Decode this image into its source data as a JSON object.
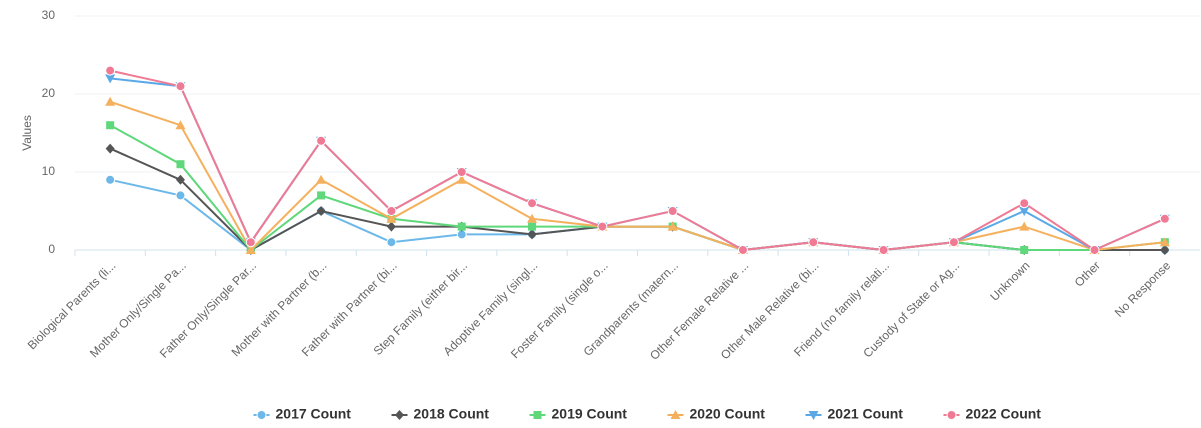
{
  "chart_data": {
    "type": "line",
    "ylabel": "Values",
    "categories": [
      "Biological Parents (li...",
      "Mother Only/Single Pa...",
      "Father Only/Single Par...",
      "Mother with Partner (b...",
      "Father with Partner (bi...",
      "Step Family (either bir...",
      "Adoptive Family (singl...",
      "Foster Family (single o...",
      "Grandparents (matern...",
      "Other Female Relative ...",
      "Other Male Relative (bi...",
      "Friend (no family relati...",
      "Custody of State or Ag...",
      "Unknown",
      "Other",
      "No Response"
    ],
    "series": [
      {
        "name": "2017 Count",
        "color": "#6cb8e8",
        "marker": "circle",
        "values": [
          9,
          7,
          0,
          5,
          1,
          2,
          2,
          3,
          3,
          0,
          1,
          0,
          1,
          0,
          0,
          0
        ]
      },
      {
        "name": "2018 Count",
        "color": "#555555",
        "marker": "diamond",
        "values": [
          13,
          9,
          0,
          5,
          3,
          3,
          2,
          3,
          3,
          0,
          1,
          0,
          1,
          0,
          0,
          0
        ]
      },
      {
        "name": "2019 Count",
        "color": "#5ed87a",
        "marker": "square",
        "values": [
          16,
          11,
          0,
          7,
          4,
          3,
          3,
          3,
          3,
          0,
          1,
          0,
          1,
          0,
          0,
          1
        ]
      },
      {
        "name": "2020 Count",
        "color": "#f5b05e",
        "marker": "triangle",
        "values": [
          19,
          16,
          0,
          9,
          4,
          9,
          4,
          3,
          3,
          0,
          1,
          0,
          1,
          3,
          0,
          1
        ]
      },
      {
        "name": "2021 Count",
        "color": "#5aa9e6",
        "marker": "triangle-down",
        "values": [
          22,
          21,
          1,
          14,
          5,
          10,
          6,
          3,
          5,
          0,
          1,
          0,
          1,
          5,
          0,
          4
        ]
      },
      {
        "name": "2022 Count",
        "color": "#f07a93",
        "marker": "circle",
        "values": [
          23,
          21,
          1,
          14,
          5,
          10,
          6,
          3,
          5,
          0,
          1,
          0,
          1,
          6,
          0,
          4
        ]
      }
    ],
    "ylim": [
      0,
      30
    ],
    "yticks": [
      0,
      10,
      20,
      30
    ],
    "grid": true,
    "legend": "bottom"
  }
}
